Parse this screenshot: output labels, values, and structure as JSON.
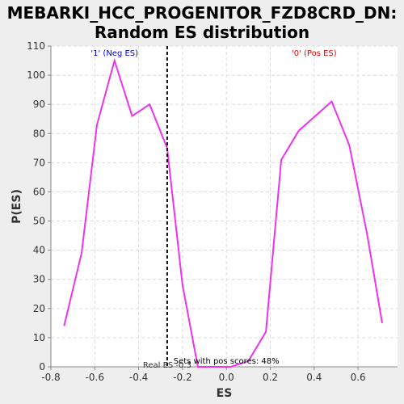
{
  "chart_data": {
    "type": "line",
    "title_line1": "MEBARKI_HCC_PROGENITOR_FZD8CRD_DN:",
    "title_line2": "Random ES distribution",
    "xlabel": "ES",
    "ylabel": "P(ES)",
    "xlim": [
      -0.8,
      0.78
    ],
    "ylim": [
      0,
      110
    ],
    "x_ticks": [
      -0.8,
      -0.6,
      -0.4,
      -0.2,
      0.0,
      0.2,
      0.4,
      0.6
    ],
    "x_tick_labels": [
      "-0.8",
      "-0.6",
      "-0.4",
      "-0.2",
      "0.0",
      "0.2",
      "0.4",
      "0.6"
    ],
    "y_ticks": [
      0,
      10,
      20,
      30,
      40,
      50,
      60,
      70,
      80,
      90,
      100,
      110
    ],
    "y_tick_labels": [
      "0",
      "10",
      "20",
      "30",
      "40",
      "50",
      "60",
      "70",
      "80",
      "90",
      "100",
      "110"
    ],
    "grid": true,
    "series": [
      {
        "color": "#ee33ee",
        "x": [
          -0.74,
          -0.66,
          -0.59,
          -0.51,
          -0.43,
          -0.35,
          -0.27,
          -0.2,
          -0.13,
          -0.06,
          0.02,
          0.1,
          0.18,
          0.25,
          0.33,
          0.48,
          0.56,
          0.64,
          0.71
        ],
        "y": [
          14,
          39,
          83,
          105,
          86,
          90,
          75,
          28,
          0,
          0,
          0,
          2,
          12,
          71,
          81,
          91,
          76,
          46,
          15
        ]
      }
    ],
    "real_es": -0.27,
    "real_es_color": "#000000",
    "annotations": {
      "neg_label": "'1' (Neg ES)",
      "neg_color": "#0000dd",
      "pos_label": "'0' (Pos ES)",
      "pos_color": "#ee0000",
      "real_es_label": "Real ES -0.3",
      "pos_scores_label": "Sets with pos scores: 48%"
    },
    "colors": {
      "plot_background": "#ffffff",
      "page_background": "#eeeeee",
      "grid": "#dddddd"
    }
  }
}
